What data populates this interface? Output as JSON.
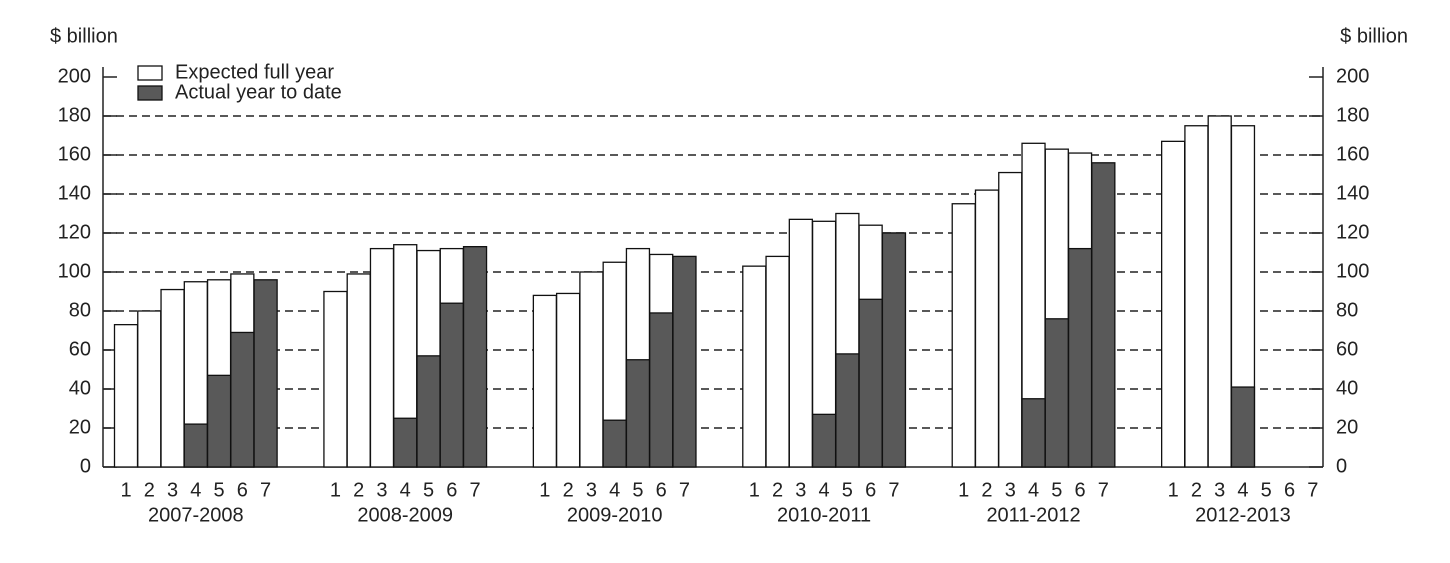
{
  "chart_data": {
    "type": "grouped-overlay-bar",
    "y_label": "$ billion",
    "y2_label": "$ billion",
    "groups": [
      "2007-2008",
      "2008-2009",
      "2009-2010",
      "2010-2011",
      "2011-2012",
      "2012-2013"
    ],
    "categories": [
      "1",
      "2",
      "3",
      "4",
      "5",
      "6",
      "7",
      "1",
      "2",
      "3",
      "4",
      "5",
      "6",
      "7",
      "1",
      "2",
      "3",
      "4",
      "5",
      "6",
      "7",
      "1",
      "2",
      "3",
      "4",
      "5",
      "6",
      "7",
      "1",
      "2",
      "3",
      "4",
      "5",
      "6",
      "7",
      "1",
      "2",
      "3",
      "4",
      "5",
      "6",
      "7"
    ],
    "series": [
      {
        "name": "Expected full year",
        "color": "#ffffff",
        "values": [
          73,
          80,
          91,
          95,
          96,
          99,
          null,
          90,
          99,
          112,
          114,
          111,
          112,
          null,
          88,
          89,
          100,
          105,
          112,
          109,
          null,
          103,
          108,
          127,
          126,
          130,
          124,
          120,
          135,
          142,
          151,
          166,
          163,
          161,
          null,
          167,
          175,
          180,
          175,
          null,
          null,
          null
        ]
      },
      {
        "name": "Actual year to date",
        "color": "#595959",
        "values": [
          null,
          null,
          null,
          22,
          47,
          69,
          96,
          null,
          null,
          null,
          25,
          57,
          84,
          113,
          null,
          null,
          null,
          24,
          55,
          79,
          108,
          null,
          null,
          null,
          27,
          58,
          86,
          120,
          null,
          null,
          null,
          35,
          76,
          112,
          156,
          null,
          null,
          null,
          41,
          null,
          null,
          null
        ]
      }
    ],
    "ylim": [
      0,
      200
    ],
    "yticks": [
      0,
      20,
      40,
      60,
      80,
      100,
      120,
      140,
      160,
      180,
      200
    ],
    "y2lim": [
      0,
      200
    ],
    "y2ticks": [
      0,
      20,
      40,
      60,
      80,
      100,
      120,
      140,
      160,
      180,
      200
    ],
    "grid": true,
    "legend": "upper left"
  }
}
